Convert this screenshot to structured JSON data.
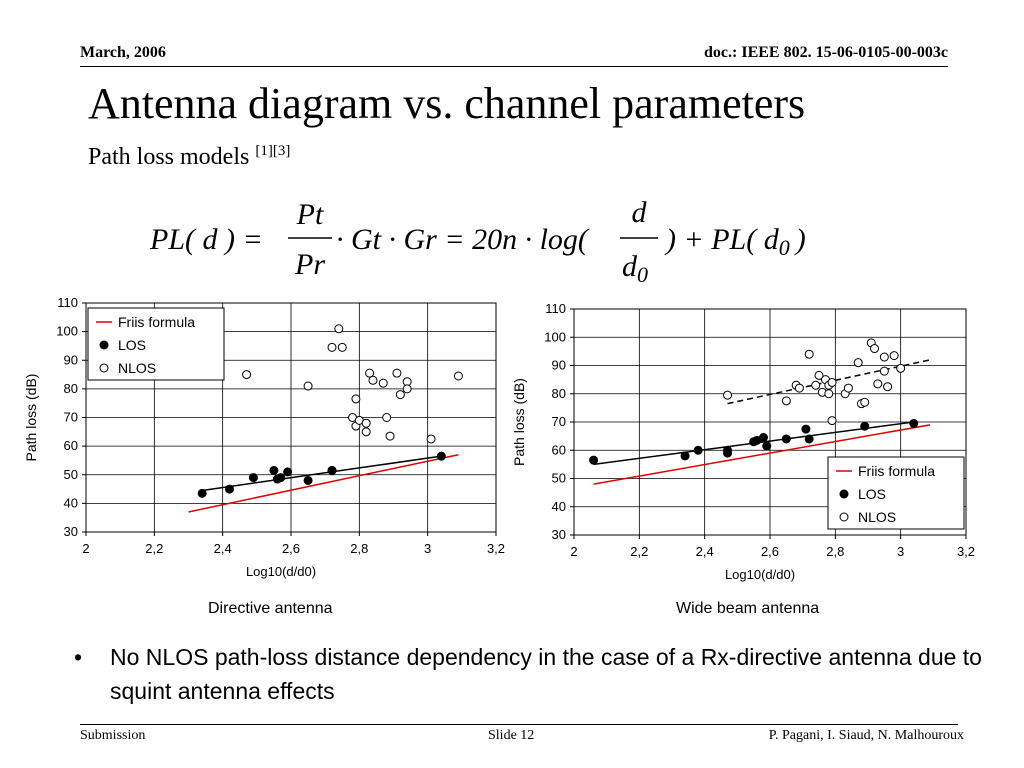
{
  "header": {
    "date": "March, 2006",
    "doc": "doc.: IEEE 802. 15-06-0105-00-003c"
  },
  "title": "Antenna diagram vs. channel parameters",
  "subtitle": {
    "text": "Path loss models ",
    "refs": "[1][3]"
  },
  "formula": {
    "lhs": "PL( d ) =",
    "frac1_num": "Pt",
    "frac1_den": "Pr",
    "mid": "· Gt · Gr = 20n · log(",
    "frac2_num": "d",
    "frac2_den": "d",
    "frac2_den_sub": "0",
    "rhs": ") + PL( d",
    "rhs_sub": "0",
    "close": ")"
  },
  "charts": [
    {
      "caption": "Directive antenna",
      "ylabel": "Path loss (dB)",
      "xlabel": "Log10(d/d0)",
      "xticks": [
        "2",
        "2,2",
        "2,4",
        "2,6",
        "2,8",
        "3",
        "3,2"
      ],
      "yticks": [
        "30",
        "40",
        "50",
        "60",
        "70",
        "80",
        "90",
        "100",
        "110"
      ],
      "legend": [
        "Friis formula",
        "LOS",
        "NLOS"
      ]
    },
    {
      "caption": "Wide beam antenna",
      "ylabel": "Path loss (dB)",
      "xlabel": "Log10(d/d0)",
      "xticks": [
        "2",
        "2,2",
        "2,4",
        "2,6",
        "2,8",
        "3",
        "3,2"
      ],
      "yticks": [
        "30",
        "40",
        "50",
        "60",
        "70",
        "80",
        "90",
        "100",
        "110"
      ],
      "legend": [
        "Friis formula",
        "LOS",
        "NLOS"
      ]
    }
  ],
  "chart_data": [
    {
      "type": "scatter",
      "xlabel": "Log10(d/d0)",
      "ylabel": "Path loss (dB)",
      "xlim": [
        2,
        3.2
      ],
      "ylim": [
        30,
        110
      ],
      "grid": true,
      "legend_position": "top-left",
      "series": [
        {
          "name": "Friis formula",
          "kind": "line",
          "color": "#e00000",
          "x": [
            2.3,
            3.09
          ],
          "y": [
            37,
            57
          ]
        },
        {
          "name": "LOS fit",
          "kind": "line",
          "color": "#000000",
          "x": [
            2.34,
            3.04
          ],
          "y": [
            44.5,
            56.5
          ]
        },
        {
          "name": "LOS",
          "kind": "points",
          "marker": "filled",
          "x": [
            2.34,
            2.42,
            2.49,
            2.55,
            2.56,
            2.57,
            2.59,
            2.65,
            2.72,
            2.72,
            3.04
          ],
          "y": [
            43.5,
            45,
            49,
            51.5,
            48.5,
            49,
            51,
            48,
            51.5,
            51.5,
            56.5
          ]
        },
        {
          "name": "NLOS",
          "kind": "points",
          "marker": "open",
          "x": [
            2.47,
            2.65,
            2.72,
            2.74,
            2.75,
            2.78,
            2.79,
            2.79,
            2.8,
            2.82,
            2.82,
            2.83,
            2.84,
            2.87,
            2.88,
            2.89,
            2.91,
            2.92,
            2.94,
            2.94,
            3.01,
            3.09
          ],
          "y": [
            85,
            81,
            94.5,
            101,
            94.5,
            70,
            76.5,
            67,
            69,
            65,
            68,
            85.5,
            83,
            82,
            70,
            63.5,
            85.5,
            78,
            82.5,
            80,
            62.5,
            84.5
          ]
        }
      ]
    },
    {
      "type": "scatter",
      "xlabel": "Log10(d/d0)",
      "ylabel": "Path loss (dB)",
      "xlim": [
        2,
        3.2
      ],
      "ylim": [
        30,
        110
      ],
      "grid": true,
      "legend_position": "bottom-right",
      "series": [
        {
          "name": "Friis formula",
          "kind": "line",
          "color": "#e00000",
          "x": [
            2.06,
            3.09
          ],
          "y": [
            48,
            69
          ]
        },
        {
          "name": "LOS fit",
          "kind": "line",
          "color": "#000000",
          "x": [
            2.06,
            3.04
          ],
          "y": [
            55,
            70
          ]
        },
        {
          "name": "NLOS fit",
          "kind": "dashed",
          "color": "#000000",
          "x": [
            2.47,
            3.09
          ],
          "y": [
            76.5,
            92
          ]
        },
        {
          "name": "LOS",
          "kind": "points",
          "marker": "filled",
          "x": [
            2.06,
            2.34,
            2.38,
            2.47,
            2.47,
            2.55,
            2.56,
            2.58,
            2.59,
            2.65,
            2.71,
            2.72,
            2.89,
            3.04
          ],
          "y": [
            56.5,
            58,
            60,
            59,
            60,
            63,
            63.5,
            64.5,
            61.5,
            64,
            67.5,
            64,
            68.5,
            69.5
          ]
        },
        {
          "name": "NLOS",
          "kind": "points",
          "marker": "open",
          "x": [
            2.47,
            2.65,
            2.68,
            2.69,
            2.72,
            2.74,
            2.75,
            2.76,
            2.77,
            2.78,
            2.78,
            2.79,
            2.79,
            2.83,
            2.84,
            2.87,
            2.88,
            2.89,
            2.91,
            2.92,
            2.93,
            2.95,
            2.95,
            2.96,
            2.98,
            3.0
          ],
          "y": [
            79.5,
            77.5,
            83,
            82,
            94,
            83,
            86.5,
            80.5,
            85,
            80,
            83,
            84,
            70.5,
            80,
            82,
            91,
            76.5,
            77,
            98,
            96,
            83.5,
            93,
            88,
            82.5,
            93.5,
            89
          ]
        }
      ]
    }
  ],
  "bullet": {
    "mark": "•",
    "text": "No NLOS path-loss distance dependency  in the case of a Rx-directive antenna due to squint antenna effects"
  },
  "footer": {
    "left": "Submission",
    "middle": "Slide 12",
    "right": "P. Pagani, I. Siaud, N. Malhouroux"
  }
}
